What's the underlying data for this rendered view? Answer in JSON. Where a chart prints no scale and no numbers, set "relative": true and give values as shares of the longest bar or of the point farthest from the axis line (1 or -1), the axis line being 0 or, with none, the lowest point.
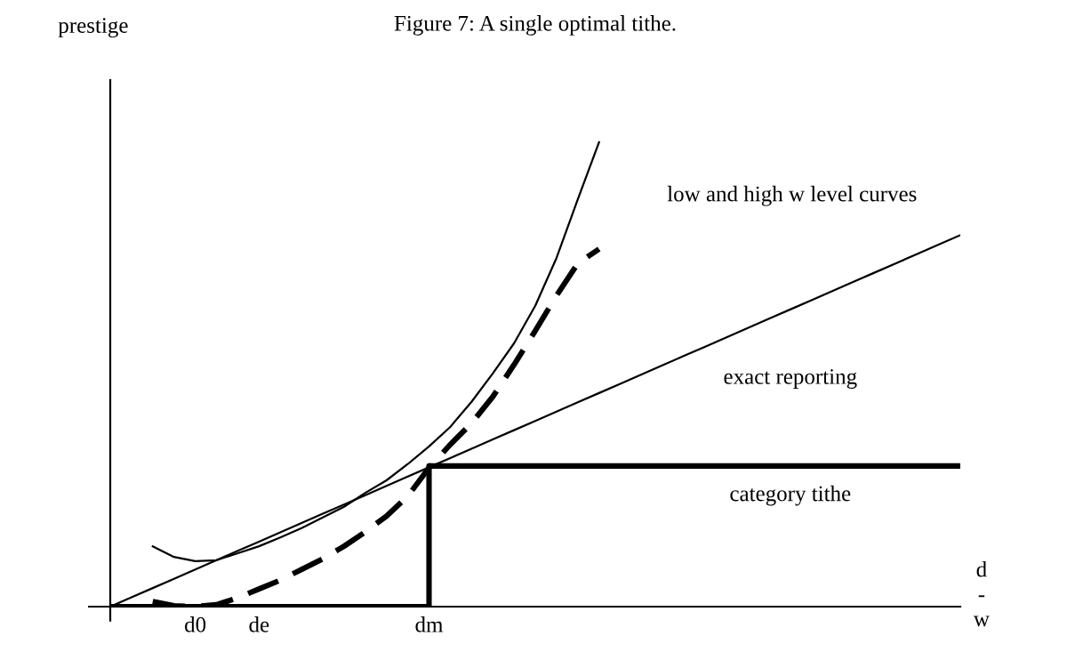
{
  "chart_data": {
    "type": "line",
    "title": "Figure 7: A single optimal tithe.",
    "xlabel": "d\n-\nw",
    "relative": true,
    "tick_labels": "x",
    "categories": [
      null,
      null,
      null,
      null,
      "d0",
      null,
      null,
      "de",
      null,
      null,
      null,
      null,
      null,
      null,
      null,
      "dm",
      null,
      null,
      null,
      null,
      null,
      null,
      null,
      null,
      null,
      null,
      null,
      null,
      null,
      null,
      null,
      null,
      null,
      null,
      null,
      null,
      null,
      null,
      null,
      null,
      null
    ],
    "series": [
      {
        "values": [
          null,
          null,
          0.13,
          0.107,
          0.098,
          0.1,
          0.115,
          0.13,
          0.149,
          0.169,
          0.192,
          0.215,
          0.245,
          0.272,
          0.307,
          0.345,
          0.387,
          0.441,
          0.502,
          0.567,
          0.648,
          0.751,
          0.877,
          1.0,
          null,
          null,
          null,
          null,
          null,
          null,
          null,
          null,
          null,
          null,
          null,
          null,
          null,
          null,
          null,
          null,
          null
        ],
        "color": "#000000",
        "line_style": "solid"
      },
      {
        "values": [
          null,
          null,
          0.011,
          0.002,
          0,
          0.004,
          0.019,
          0.038,
          0.057,
          0.08,
          0.103,
          0.13,
          0.161,
          0.195,
          0.238,
          0.299,
          0.349,
          0.395,
          0.452,
          0.521,
          0.594,
          0.67,
          0.739,
          0.77,
          null,
          null,
          null,
          null,
          null,
          null,
          null,
          null,
          null,
          null,
          null,
          null,
          null,
          null,
          null,
          null,
          null
        ],
        "color": "#000000",
        "line_style": "dashed"
      },
      {
        "name": "exact reporting",
        "values": [
          0,
          0.02,
          0.04,
          0.06,
          0.08,
          0.1,
          0.12,
          0.14,
          0.16,
          0.18,
          0.2,
          0.22,
          0.24,
          0.26,
          0.28,
          0.3,
          0.32,
          0.34,
          0.36,
          0.38,
          0.4,
          0.42,
          0.44,
          0.46,
          0.48,
          0.5,
          0.52,
          0.54,
          0.56,
          0.58,
          0.6,
          0.62,
          0.64,
          0.66,
          0.68,
          0.7,
          0.72,
          0.74,
          0.76,
          0.78,
          0.8
        ],
        "color": "#000000",
        "line_style": "solid"
      },
      {
        "name": "category tithe",
        "type": "step",
        "values": [
          0,
          0,
          0,
          0,
          0,
          0,
          0,
          0,
          0,
          0,
          0,
          0,
          0,
          0,
          0,
          0.303,
          0.303,
          0.303,
          0.303,
          0.303,
          0.303,
          0.303,
          0.303,
          0.303,
          0.303,
          0.303,
          0.303,
          0.303,
          0.303,
          0.303,
          0.303,
          0.303,
          0.303,
          0.303,
          0.303,
          0.303,
          0.303,
          0.303,
          0.303,
          0.303,
          0.303
        ],
        "color": "#000000",
        "line_style": "solid"
      }
    ],
    "annotations": [
      "low and high w level curves",
      "prestige"
    ]
  }
}
